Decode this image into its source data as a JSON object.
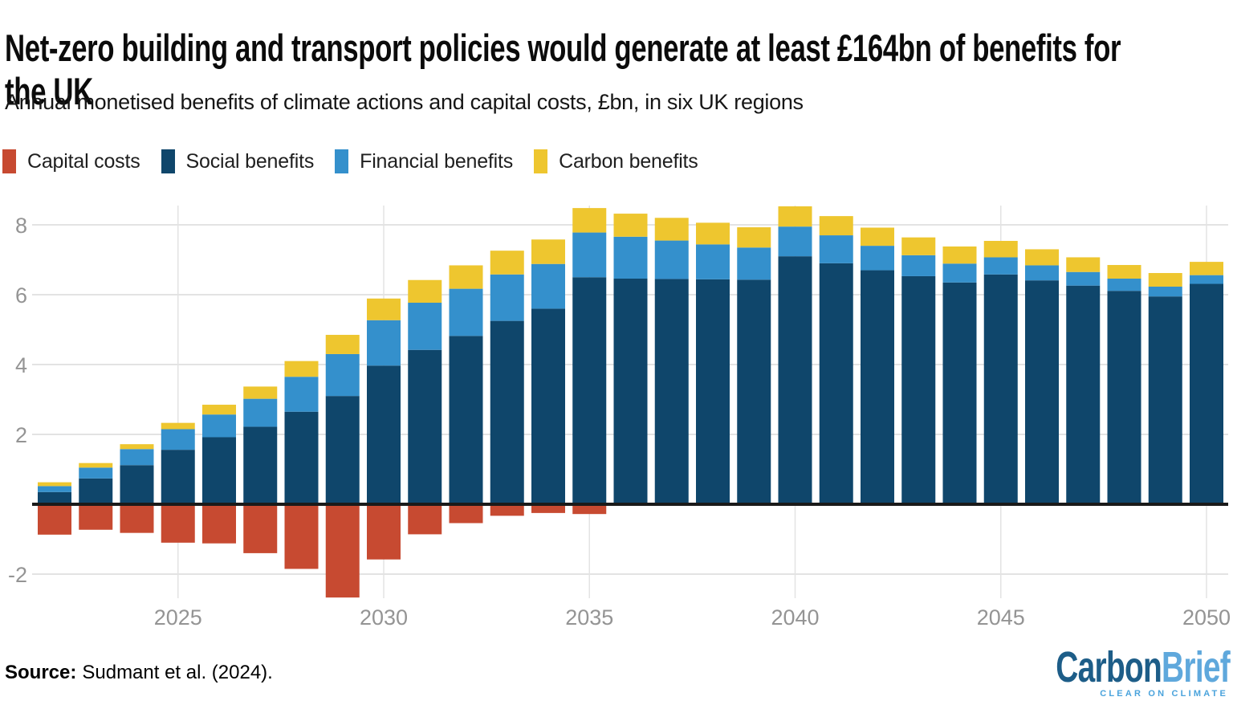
{
  "chart_data": {
    "type": "bar",
    "stacked": true,
    "title": "Net-zero building and transport policies would generate at least £164bn of benefits for the UK",
    "subtitle": "Annual monetised benefits of climate actions and capital costs, £bn, in six UK regions",
    "x": [
      2022,
      2023,
      2024,
      2025,
      2026,
      2027,
      2028,
      2029,
      2030,
      2031,
      2032,
      2033,
      2034,
      2035,
      2036,
      2037,
      2038,
      2039,
      2040,
      2041,
      2042,
      2043,
      2044,
      2045,
      2046,
      2047,
      2048,
      2049,
      2050
    ],
    "series": [
      {
        "name": "Capital costs",
        "color": "#c74a31",
        "values": [
          -0.87,
          -0.73,
          -0.82,
          -1.1,
          -1.12,
          -1.4,
          -1.85,
          -2.67,
          -1.58,
          -0.86,
          -0.54,
          -0.33,
          -0.25,
          -0.28,
          0,
          0,
          0,
          0,
          0,
          0,
          0,
          0,
          0,
          0,
          0,
          0,
          0,
          0,
          0
        ]
      },
      {
        "name": "Social benefits",
        "color": "#0f466b",
        "values": [
          0.35,
          0.74,
          1.12,
          1.56,
          1.92,
          2.22,
          2.65,
          3.1,
          3.97,
          4.42,
          4.82,
          5.25,
          5.6,
          6.5,
          6.46,
          6.45,
          6.44,
          6.43,
          7.1,
          6.9,
          6.7,
          6.53,
          6.35,
          6.58,
          6.41,
          6.26,
          6.11,
          5.95,
          6.31
        ]
      },
      {
        "name": "Financial benefits",
        "color": "#3490cc",
        "values": [
          0.17,
          0.31,
          0.46,
          0.59,
          0.65,
          0.8,
          1.0,
          1.2,
          1.3,
          1.35,
          1.35,
          1.33,
          1.28,
          1.28,
          1.2,
          1.1,
          1.0,
          0.92,
          0.85,
          0.8,
          0.7,
          0.6,
          0.54,
          0.49,
          0.43,
          0.39,
          0.35,
          0.28,
          0.25
        ]
      },
      {
        "name": "Carbon benefits",
        "color": "#eec62f",
        "values": [
          0.11,
          0.13,
          0.14,
          0.18,
          0.28,
          0.35,
          0.45,
          0.55,
          0.62,
          0.65,
          0.67,
          0.68,
          0.7,
          0.7,
          0.66,
          0.65,
          0.62,
          0.58,
          0.58,
          0.55,
          0.52,
          0.51,
          0.49,
          0.47,
          0.46,
          0.42,
          0.39,
          0.39,
          0.38
        ]
      }
    ],
    "yticks": [
      8,
      6,
      4,
      2,
      -2
    ],
    "xticks": [
      2025,
      2030,
      2035,
      2040,
      2045,
      2050
    ],
    "ylim": [
      -2.7,
      8.6
    ],
    "xlabel": "",
    "ylabel": "",
    "grid": true,
    "legend_position": "top-left",
    "baseline_color": "#1a1a1a",
    "axis_text_color": "#949494",
    "gridline_color": "#e3e3e3"
  },
  "footer": {
    "source_label": "Source:",
    "source_text": "Sudmant et al. (2024)."
  },
  "logo": {
    "word1": "Carbon",
    "word2": "Brief",
    "tagline": "CLEAR ON CLIMATE",
    "word1_color": "#1d5d88",
    "word2_color": "#5fa8dc",
    "tagline_color": "#4aa3dc"
  }
}
